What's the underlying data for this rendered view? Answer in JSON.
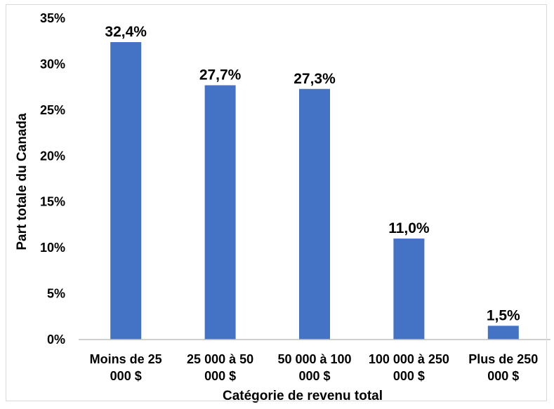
{
  "chart_data": {
    "type": "bar",
    "title": "",
    "xlabel": "Catégorie de revenu total",
    "ylabel": "Part totale du Canada",
    "categories": [
      [
        "Moins de 25",
        "000 $"
      ],
      [
        "25 000 à 50",
        "000 $"
      ],
      [
        "50 000 à 100",
        "000 $"
      ],
      [
        "100 000 à 250",
        "000 $"
      ],
      [
        "Plus de 250",
        "000 $"
      ]
    ],
    "values": [
      32.4,
      27.7,
      27.3,
      11.0,
      1.5
    ],
    "value_labels": [
      "32,4%",
      "27,7%",
      "27,3%",
      "11,0%",
      "1,5%"
    ],
    "y_ticks": [
      0,
      5,
      10,
      15,
      20,
      25,
      30,
      35
    ],
    "y_tick_labels": [
      "0%",
      "5%",
      "10%",
      "15%",
      "20%",
      "25%",
      "30%",
      "35%"
    ],
    "ylim": [
      0,
      35
    ],
    "grid": false,
    "legend": "none",
    "colors": {
      "bar": "#4472c4",
      "axis": "#bfbfbf",
      "text": "#000000"
    }
  }
}
